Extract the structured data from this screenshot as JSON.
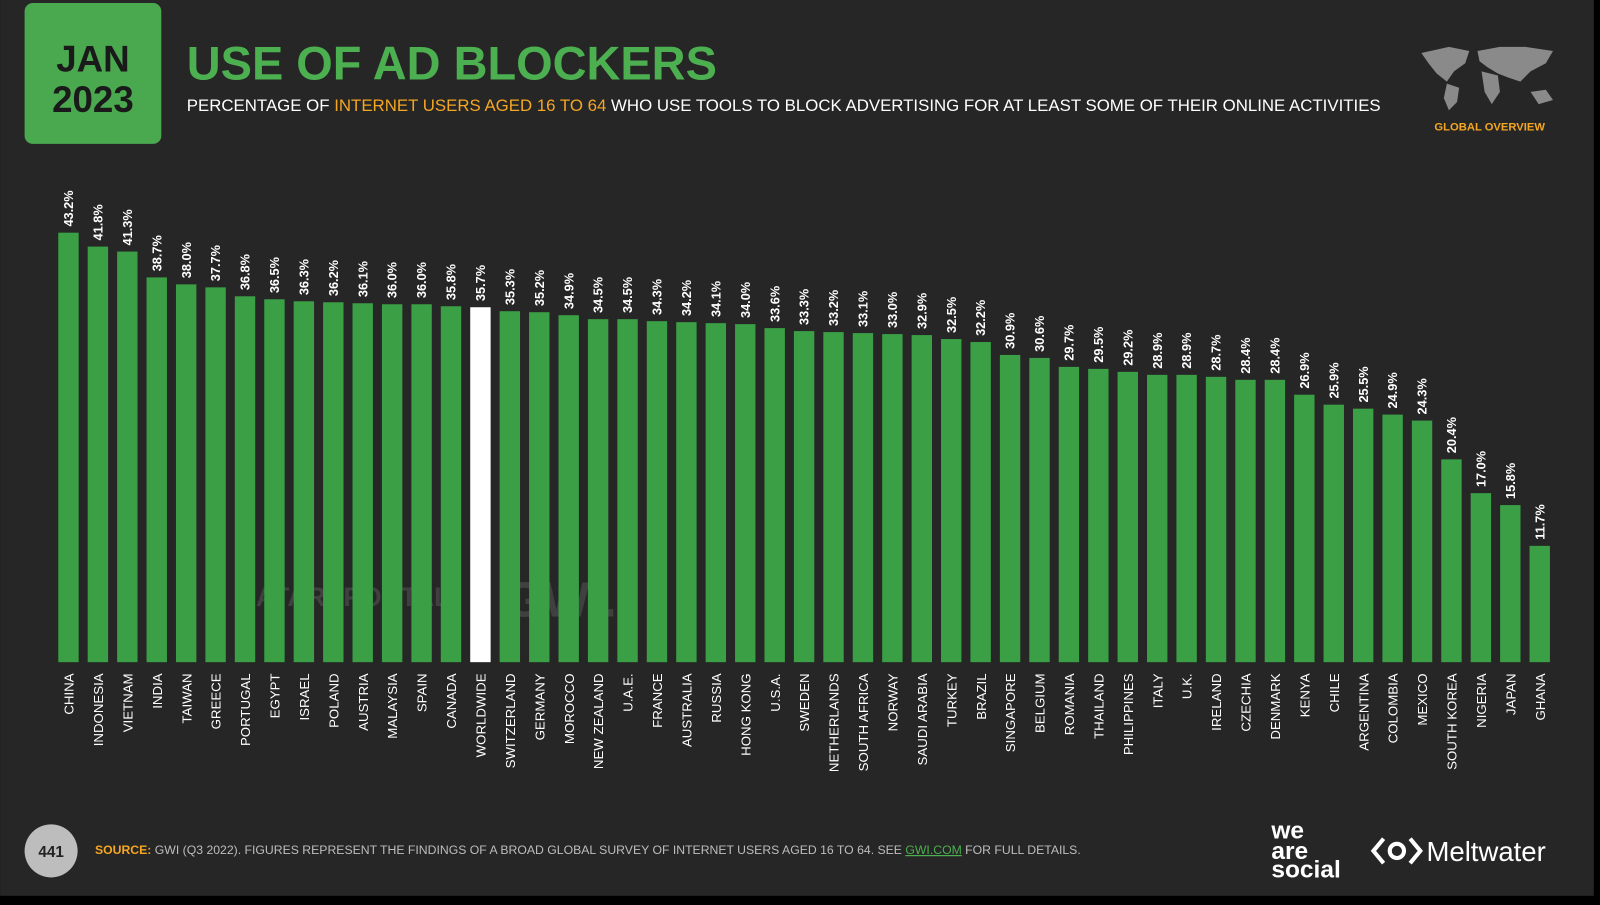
{
  "slide": {
    "date_month": "JAN",
    "date_year": "2023",
    "subtitle_parts": [
      "PERCENTAGE OF ",
      "INTERNET USERS AGED 16 TO 64",
      " WHO USE TOOLS TO BLOCK ADVERTISING FOR AT LEAST SOME OF THEIR ONLINE ACTIVITIES"
    ],
    "region_label": "GLOBAL OVERVIEW",
    "watermarks": [
      "DATAREPORTAL",
      "GWI."
    ],
    "page_number": "441",
    "source_label": "SOURCE:",
    "source_text": " GWI (Q3 2022). FIGURES REPRESENT THE FINDINGS OF A BROAD GLOBAL SURVEY OF INTERNET USERS AGED 16 TO 64. SEE ",
    "source_link": "GWI.COM",
    "source_end": " FOR FULL DETAILS.",
    "logo_1": [
      "we",
      "are",
      "social"
    ],
    "logo_2": "Meltwater"
  },
  "chart_data": {
    "type": "bar",
    "title": "USE OF AD BLOCKERS",
    "categories": [
      "CHINA",
      "INDONESIA",
      "VIETNAM",
      "INDIA",
      "TAIWAN",
      "GREECE",
      "PORTUGAL",
      "EGYPT",
      "ISRAEL",
      "POLAND",
      "AUSTRIA",
      "MALAYSIA",
      "SPAIN",
      "CANADA",
      "WORLDWIDE",
      "SWITZERLAND",
      "GERMANY",
      "MOROCCO",
      "NEW ZEALAND",
      "U.A.E.",
      "FRANCE",
      "AUSTRALIA",
      "RUSSIA",
      "HONG KONG",
      "U.S.A.",
      "SWEDEN",
      "NETHERLANDS",
      "SOUTH AFRICA",
      "NORWAY",
      "SAUDI ARABIA",
      "TURKEY",
      "BRAZIL",
      "SINGAPORE",
      "BELGIUM",
      "ROMANIA",
      "THAILAND",
      "PHILIPPINES",
      "ITALY",
      "U.K.",
      "IRELAND",
      "CZECHIA",
      "DENMARK",
      "KENYA",
      "CHILE",
      "ARGENTINA",
      "COLOMBIA",
      "MEXICO",
      "SOUTH KOREA",
      "NIGERIA",
      "JAPAN",
      "GHANA"
    ],
    "values": [
      43.2,
      41.8,
      41.3,
      38.7,
      38.0,
      37.7,
      36.8,
      36.5,
      36.3,
      36.2,
      36.1,
      36.0,
      36.0,
      35.8,
      35.7,
      35.3,
      35.2,
      34.9,
      34.5,
      34.5,
      34.3,
      34.2,
      34.1,
      34.0,
      33.6,
      33.3,
      33.2,
      33.1,
      33.0,
      32.9,
      32.5,
      32.2,
      30.9,
      30.6,
      29.7,
      29.5,
      29.2,
      28.9,
      28.9,
      28.7,
      28.4,
      28.4,
      26.9,
      25.9,
      25.5,
      24.9,
      24.3,
      20.4,
      17.0,
      15.8,
      11.7
    ],
    "value_labels": [
      "43.2%",
      "41.8%",
      "41.3%",
      "38.7%",
      "38.0%",
      "37.7%",
      "36.8%",
      "36.5%",
      "36.3%",
      "36.2%",
      "36.1%",
      "36.0%",
      "36.0%",
      "35.8%",
      "35.7%",
      "35.3%",
      "35.2%",
      "34.9%",
      "34.5%",
      "34.5%",
      "34.3%",
      "34.2%",
      "34.1%",
      "34.0%",
      "33.6%",
      "33.3%",
      "33.2%",
      "33.1%",
      "33.0%",
      "32.9%",
      "32.5%",
      "32.2%",
      "30.9%",
      "30.6%",
      "29.7%",
      "29.5%",
      "29.2%",
      "28.9%",
      "28.9%",
      "28.7%",
      "28.4%",
      "28.4%",
      "26.9%",
      "25.9%",
      "25.5%",
      "24.9%",
      "24.3%",
      "20.4%",
      "17.0%",
      "15.8%",
      "11.7%"
    ],
    "colors": [
      "#3a9f45",
      "#3a9f45",
      "#3a9f45",
      "#3a9f45",
      "#3a9f45",
      "#3a9f45",
      "#3a9f45",
      "#3a9f45",
      "#3a9f45",
      "#3a9f45",
      "#3a9f45",
      "#3a9f45",
      "#3a9f45",
      "#3a9f45",
      "#ffffff",
      "#3a9f45",
      "#3a9f45",
      "#3a9f45",
      "#3a9f45",
      "#3a9f45",
      "#3a9f45",
      "#3a9f45",
      "#3a9f45",
      "#3a9f45",
      "#3a9f45",
      "#3a9f45",
      "#3a9f45",
      "#3a9f45",
      "#3a9f45",
      "#3a9f45",
      "#3a9f45",
      "#3a9f45",
      "#3a9f45",
      "#3a9f45",
      "#3a9f45",
      "#3a9f45",
      "#3a9f45",
      "#3a9f45",
      "#3a9f45",
      "#3a9f45",
      "#3a9f45",
      "#3a9f45",
      "#3a9f45",
      "#3a9f45",
      "#3a9f45",
      "#3a9f45",
      "#3a9f45",
      "#3a9f45",
      "#3a9f45",
      "#3a9f45",
      "#3a9f45"
    ],
    "ylim": [
      0,
      45
    ],
    "grid": false
  }
}
